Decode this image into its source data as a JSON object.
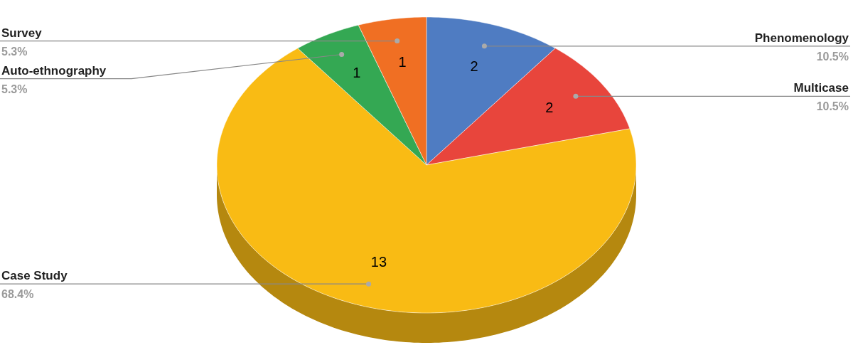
{
  "chart_data": {
    "type": "pie",
    "categories": [
      "Phenomenology",
      "Multicase",
      "Case Study",
      "Auto-ethnography",
      "Survey"
    ],
    "values": [
      2,
      2,
      13,
      1,
      1
    ],
    "colors": [
      "#4f7cc2",
      "#e8453c",
      "#f9bb14",
      "#34a853",
      "#f06f23"
    ],
    "data_labels": true,
    "annotations": [
      {
        "text": "10.5%",
        "x": "Phenomenology"
      },
      {
        "text": "10.5%",
        "x": "Multicase"
      },
      {
        "text": "68.4%",
        "x": "Case Study"
      },
      {
        "text": "5.3%",
        "x": "Auto-ethnography"
      },
      {
        "text": "5.3%",
        "x": "Survey"
      }
    ]
  }
}
